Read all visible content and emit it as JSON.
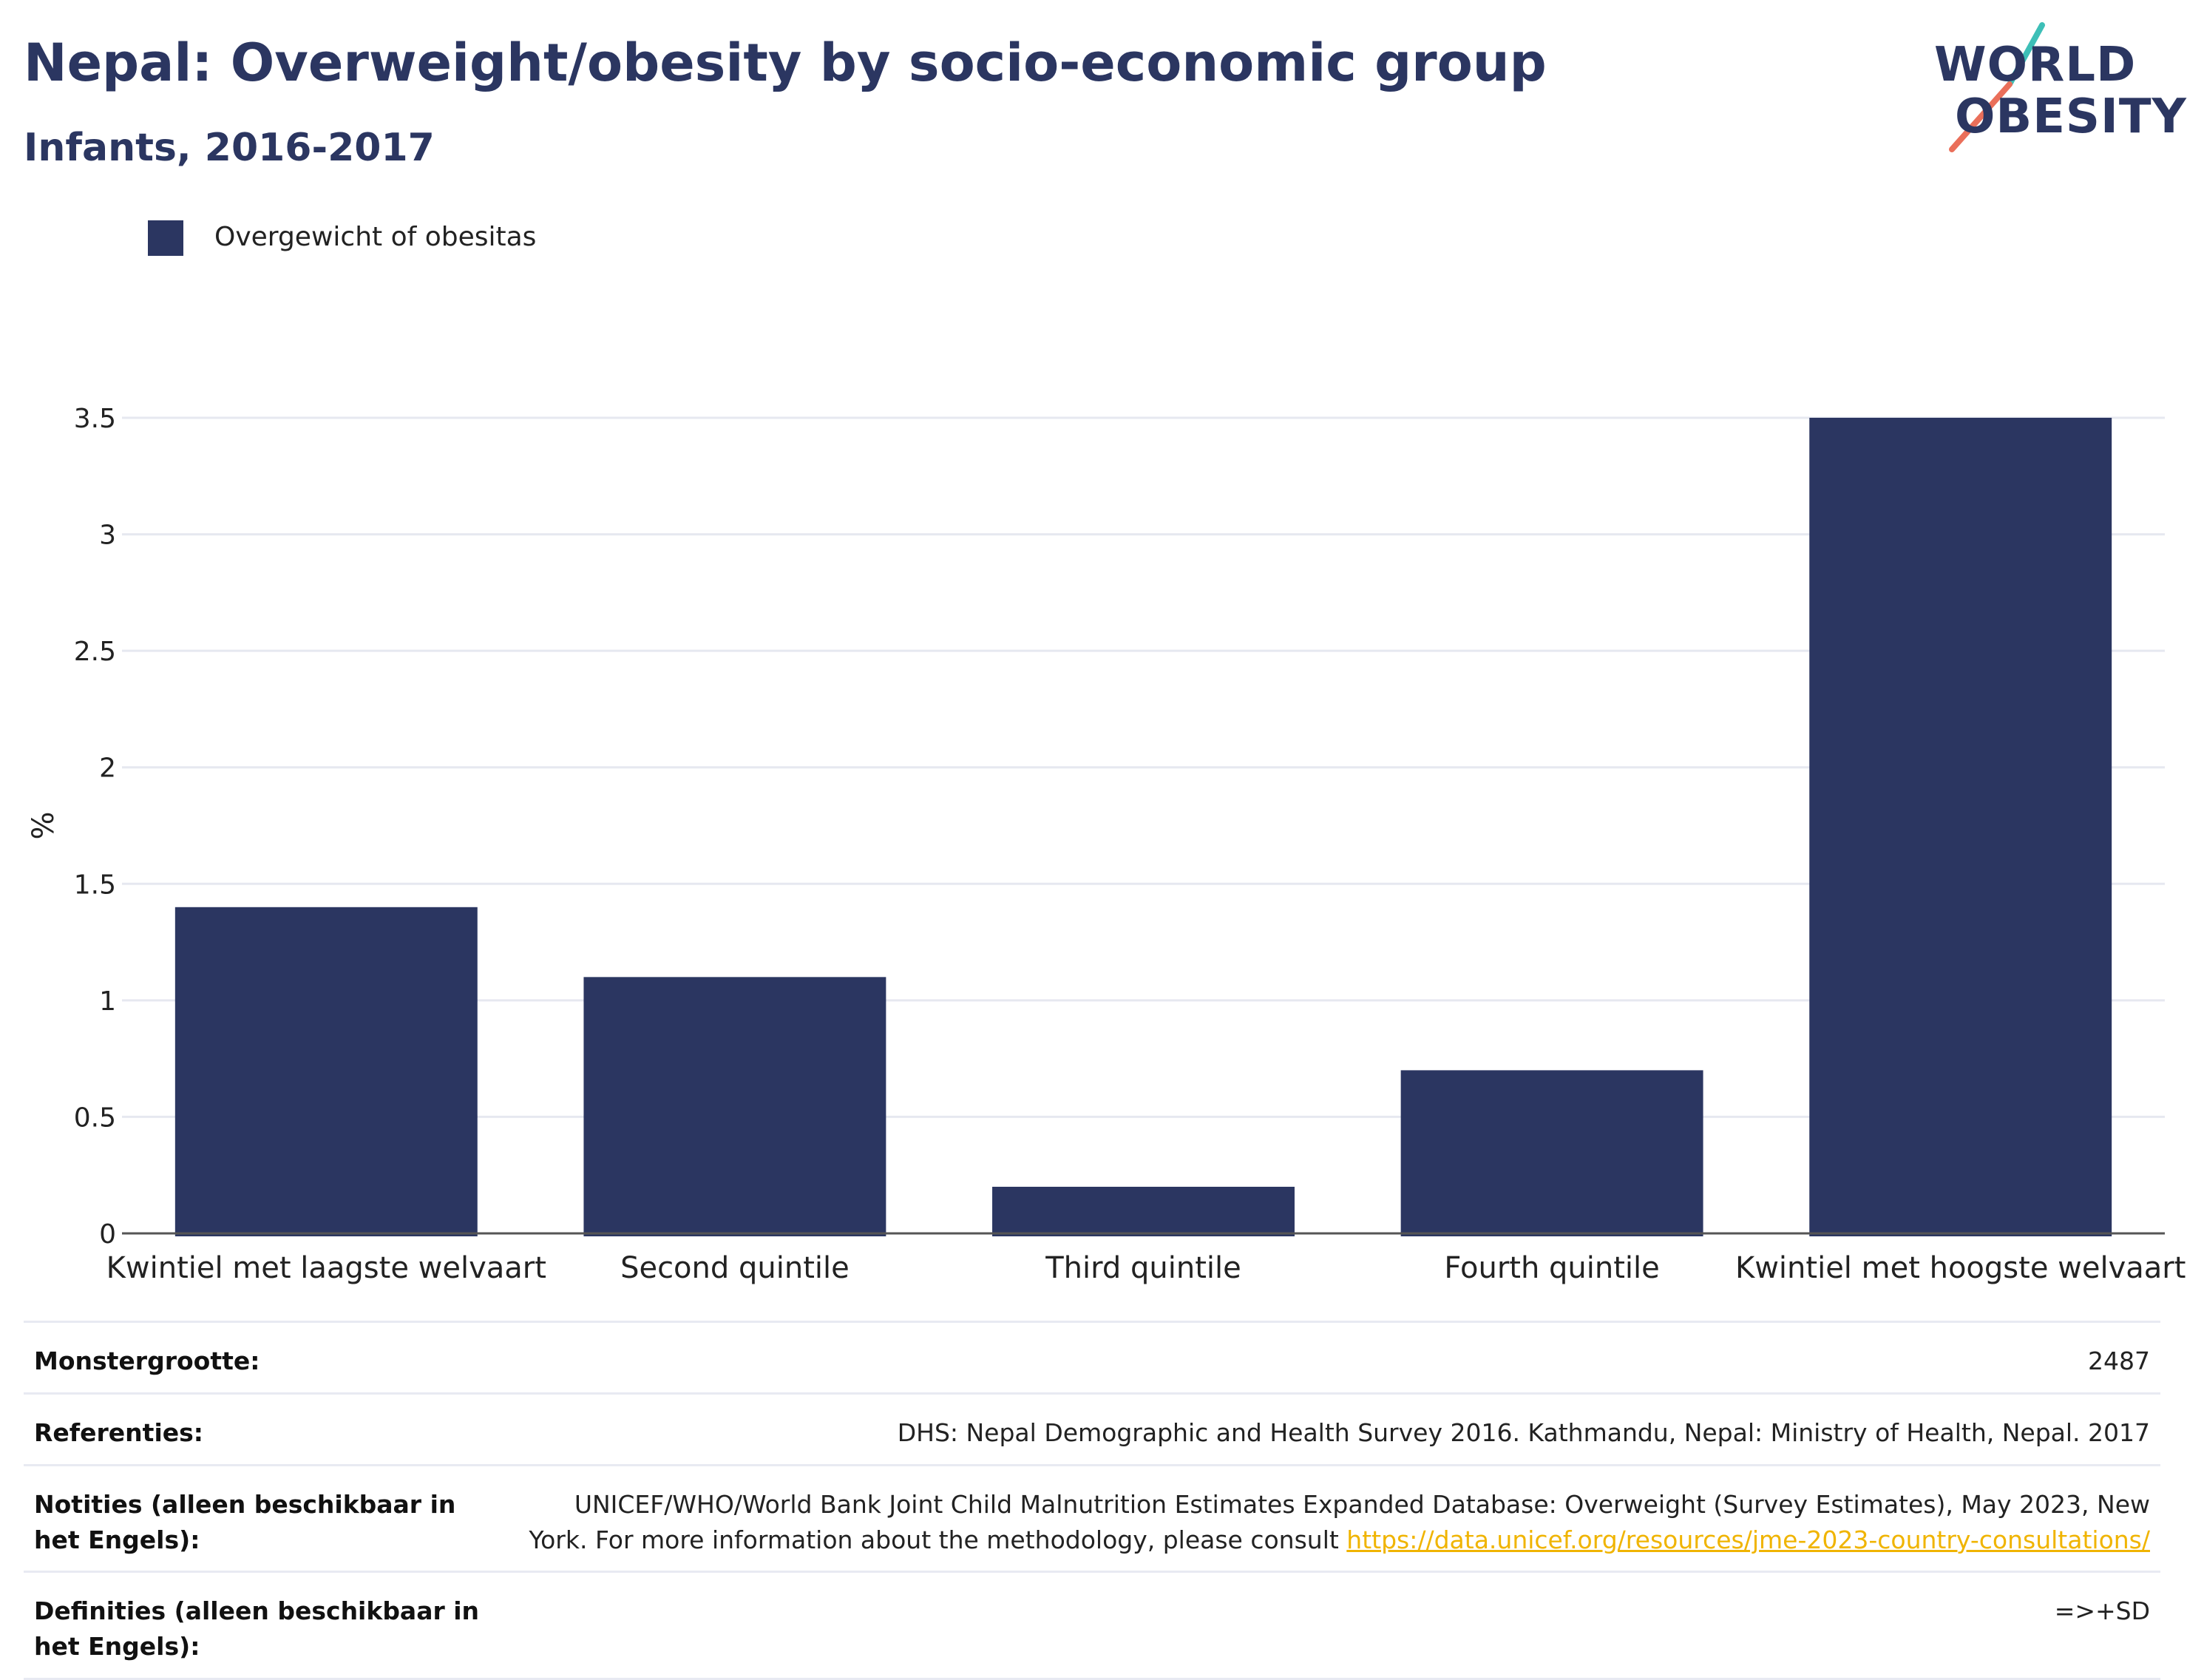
{
  "header": {
    "title": "Nepal: Overweight/obesity by socio-economic group",
    "subtitle": "Infants, 2016-2017"
  },
  "logo": {
    "line1": "WORLD",
    "line2": "OBESITY",
    "text_color": "#2b3661",
    "accent_teal": "#3dbfb7",
    "accent_coral": "#ea6f5a"
  },
  "legend": {
    "label": "Overgewicht of obesitas",
    "color": "#2b3661"
  },
  "chart_data": {
    "type": "bar",
    "categories": [
      "Kwintiel met laagste welvaart",
      "Second quintile",
      "Third quintile",
      "Fourth quintile",
      "Kwintiel met hoogste welvaart"
    ],
    "series": [
      {
        "name": "Overgewicht of obesitas",
        "values": [
          1.4,
          1.1,
          0.2,
          0.7,
          3.5
        ],
        "color": "#2b3661"
      }
    ],
    "ylabel": "%",
    "ylim": [
      0,
      3.5
    ],
    "yticks": [
      0,
      0.5,
      1,
      1.5,
      2,
      2.5,
      3,
      3.5
    ],
    "ytick_labels": [
      "0",
      "0.5",
      "1",
      "1.5",
      "2",
      "2.5",
      "3",
      "3.5"
    ],
    "grid": true,
    "legend_position": "top-left"
  },
  "info": {
    "sample_size_label": "Monstergrootte:",
    "sample_size_value": "2487",
    "references_label": "Referenties:",
    "references_value": "DHS: Nepal Demographic and Health Survey 2016. Kathmandu, Nepal: Ministry of Health, Nepal. 2017",
    "notes_label": "Notities (alleen beschikbaar in het Engels):",
    "notes_text": "UNICEF/WHO/World Bank Joint Child Malnutrition Estimates Expanded Database: Overweight (Survey Estimates), May 2023, New York. For more information about the methodology, please consult ",
    "notes_link": "https://data.unicef.org/resources/jme-2023-country-consultations/",
    "definitions_label": "Definities (alleen beschikbaar in het Engels):",
    "definitions_value": "=>+SD"
  }
}
